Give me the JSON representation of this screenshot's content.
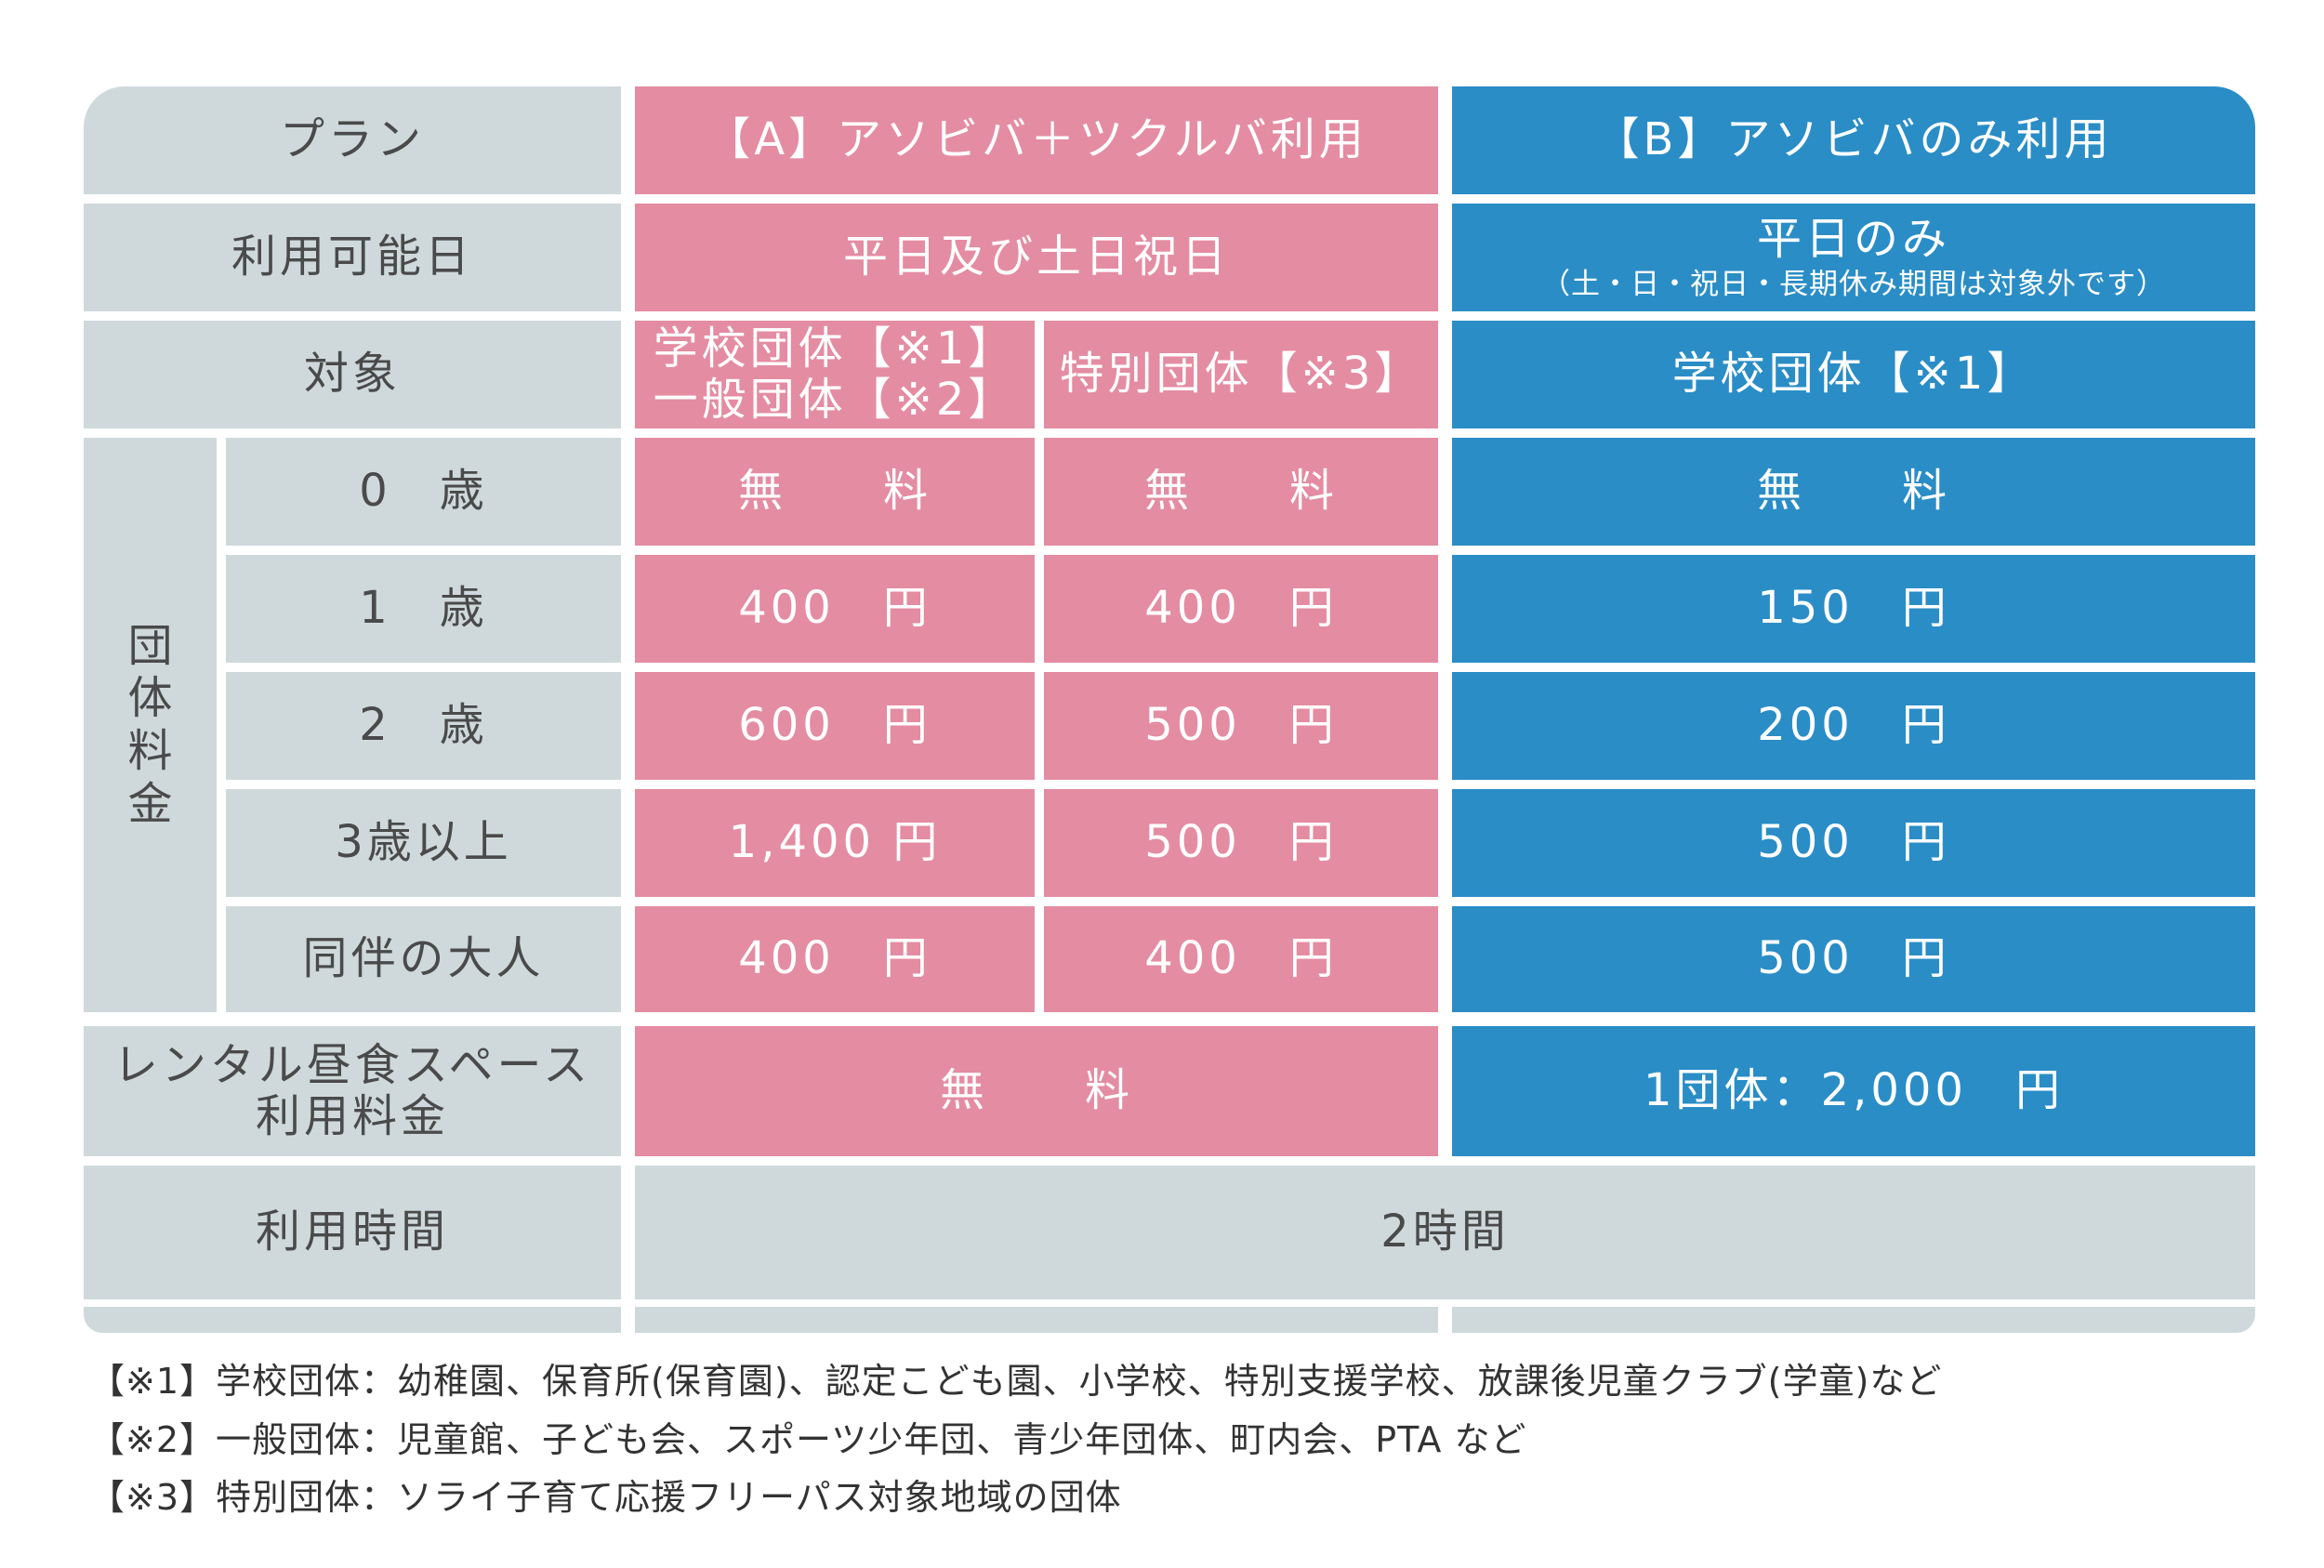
{
  "header": {
    "plan_label": "プラン",
    "plan_a": "【A】アソビバ＋ツクルバ利用",
    "plan_b": "【B】アソビバのみ利用"
  },
  "available_days": {
    "label": "利用可能日",
    "a": "平日及び土日祝日",
    "b": "平日のみ",
    "b_note": "（土・日・祝日・長期休み期間は対象外です）"
  },
  "target": {
    "label": "対象",
    "a1_line1": "学校団体【※1】",
    "a1_line2": "一般団体【※2】",
    "a2": "特別団体【※3】",
    "b": "学校団体【※1】"
  },
  "group_fee": {
    "label_chars": [
      "団",
      "体",
      "料",
      "金"
    ],
    "rows": [
      {
        "age": "0　歳",
        "a1": "無　　料",
        "a2": "無　　料",
        "b": "無　　料"
      },
      {
        "age": "1　歳",
        "a1": "400　円",
        "a2": "400　円",
        "b": "150　円"
      },
      {
        "age": "2　歳",
        "a1": "600　円",
        "a2": "500　円",
        "b": "200　円"
      },
      {
        "age": "3歳以上",
        "a1": "1,400 円",
        "a2": "500　円",
        "b": "500　円"
      },
      {
        "age": "同伴の大人",
        "a1": "400　円",
        "a2": "400　円",
        "b": "500　円"
      }
    ]
  },
  "lunch_space": {
    "label_line1": "レンタル昼食スペース",
    "label_line2": "利用料金",
    "a": "無　　料",
    "b": "1団体：2,000　円"
  },
  "usage_time": {
    "label": "利用時間",
    "value": "2時間"
  },
  "footnotes": [
    "【※1】学校団体：幼稚園、保育所(保育園)、認定こども園、小学校、特別支援学校、放課後児童クラブ(学童)など",
    "【※2】一般団体：児童館、子ども会、スポーツ少年団、青少年団体、町内会、PTA など",
    "【※3】特別団体：ソライ子育て応援フリーパス対象地域の団体"
  ],
  "colors": {
    "gray": "#cfd9dc",
    "pink": "#e48ca2",
    "blue": "#2a8dc6",
    "label_text": "#4a4a4a"
  }
}
